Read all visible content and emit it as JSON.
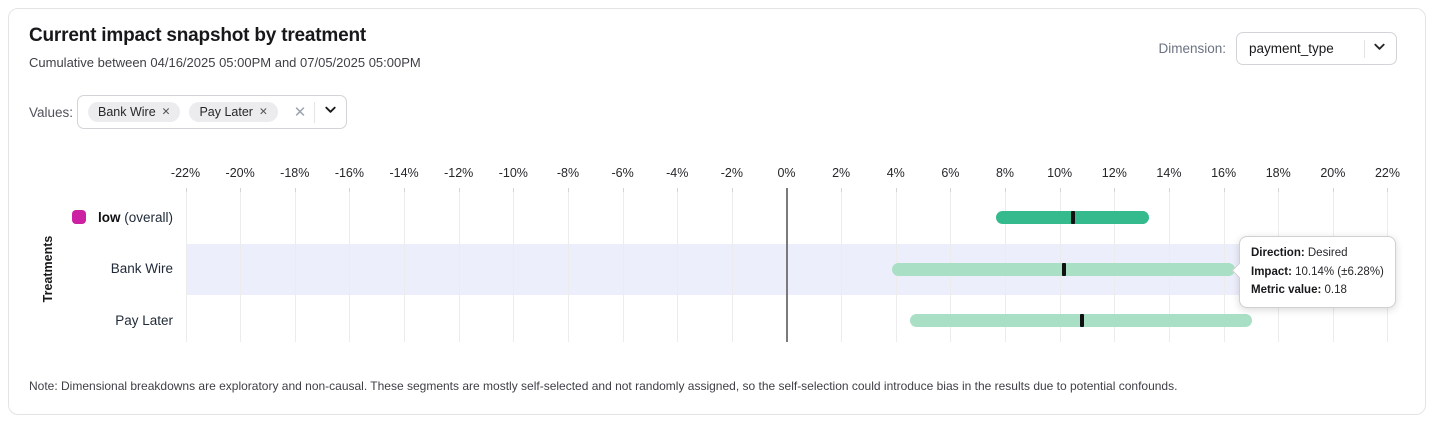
{
  "header": {
    "title": "Current impact snapshot by treatment",
    "subtitle": "Cumulative between 04/16/2025 05:00PM and 07/05/2025 05:00PM",
    "dimension": {
      "label": "Dimension:",
      "value": "payment_type"
    }
  },
  "filters": {
    "label": "Values:",
    "chips": [
      "Bank Wire",
      "Pay Later"
    ],
    "remove_icon": "✕",
    "clear_icon": "✕"
  },
  "chart_data": {
    "type": "bar",
    "subtype": "horizontal interval plot (point estimate with confidence interval)",
    "title": "Current impact snapshot by treatment",
    "xlabel": "",
    "ylabel": "Treatments",
    "xlim": [
      -22,
      22
    ],
    "x_tick_step": 2,
    "x_ticks": [
      {
        "value": -22,
        "label": "-22%"
      },
      {
        "value": -20,
        "label": "-20%"
      },
      {
        "value": -18,
        "label": "-18%"
      },
      {
        "value": -16,
        "label": "-16%"
      },
      {
        "value": -14,
        "label": "-14%"
      },
      {
        "value": -12,
        "label": "-12%"
      },
      {
        "value": -10,
        "label": "-10%"
      },
      {
        "value": -8,
        "label": "-8%"
      },
      {
        "value": -6,
        "label": "-6%"
      },
      {
        "value": -4,
        "label": "-4%"
      },
      {
        "value": -2,
        "label": "-2%"
      },
      {
        "value": 0,
        "label": "0%"
      },
      {
        "value": 2,
        "label": "2%"
      },
      {
        "value": 4,
        "label": "4%"
      },
      {
        "value": 6,
        "label": "6%"
      },
      {
        "value": 8,
        "label": "8%"
      },
      {
        "value": 10,
        "label": "10%"
      },
      {
        "value": 12,
        "label": "12%"
      },
      {
        "value": 14,
        "label": "14%"
      },
      {
        "value": 16,
        "label": "16%"
      },
      {
        "value": 18,
        "label": "18%"
      },
      {
        "value": 20,
        "label": "20%"
      },
      {
        "value": 22,
        "label": "22%"
      }
    ],
    "grid": true,
    "marker_color": "#111113",
    "highlight_color": "#edeefb",
    "rows": [
      {
        "label": "low",
        "note": "(overall)",
        "legend_color": "#cb21a2",
        "bar_color": "#35ba8d",
        "low_pct": 7.68,
        "mid_pct": 10.47,
        "high_pct": 13.27,
        "highlighted": false
      },
      {
        "label": "Bank Wire",
        "note": "",
        "legend_color": "",
        "bar_color": "#a9dfc4",
        "low_pct": 3.86,
        "mid_pct": 10.14,
        "high_pct": 16.42,
        "highlighted": true
      },
      {
        "label": "Pay Later",
        "note": "",
        "legend_color": "",
        "bar_color": "#a9dfc4",
        "low_pct": 4.51,
        "mid_pct": 10.81,
        "high_pct": 17.05,
        "highlighted": false
      }
    ]
  },
  "tooltip": {
    "lines": [
      {
        "label": "Direction:",
        "value": "Desired"
      },
      {
        "label": "Impact:",
        "value": "10.14% (±6.28%)"
      },
      {
        "label": "Metric value:",
        "value": "0.18"
      }
    ]
  },
  "note": "Note: Dimensional breakdowns are exploratory and non-causal. These segments are mostly self-selected and not randomly assigned, so the self-selection could introduce bias in the results due to potential confounds."
}
